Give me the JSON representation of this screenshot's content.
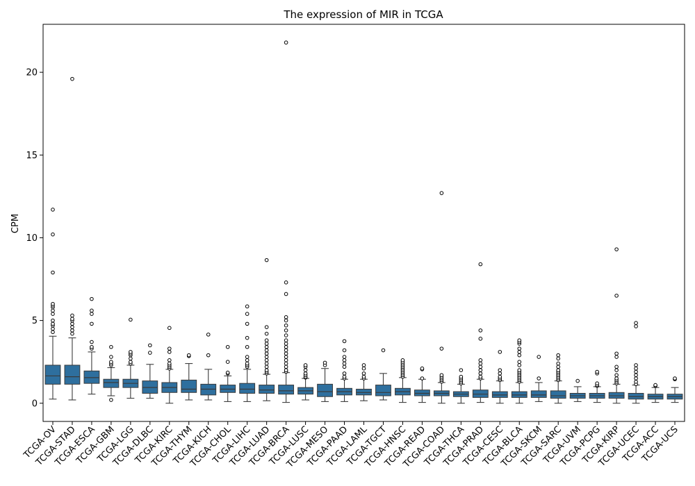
{
  "chart_data": {
    "type": "box",
    "title": "The expression of MIR in TCGA",
    "xlabel": "",
    "ylabel": "CPM",
    "ylim": [
      -1.1,
      22.9
    ],
    "yticks": [
      0,
      5,
      10,
      15,
      20
    ],
    "grid": false,
    "box_color": "#2e6f9e",
    "edge_color": "#3a3a3a",
    "categories": [
      {
        "name": "TCGA-OV",
        "whisker_low": 0.25,
        "q1": 1.15,
        "median": 1.65,
        "q3": 2.3,
        "whisker_high": 4.05,
        "outliers": [
          4.3,
          4.5,
          4.7,
          4.8,
          5.0,
          5.4,
          5.6,
          5.8,
          5.9,
          6.0,
          7.9,
          10.2,
          11.7
        ]
      },
      {
        "name": "TCGA-STAD",
        "whisker_low": 0.2,
        "q1": 1.15,
        "median": 1.6,
        "q3": 2.3,
        "whisker_high": 3.95,
        "outliers": [
          4.2,
          4.4,
          4.6,
          4.8,
          5.0,
          5.1,
          5.3,
          19.6
        ]
      },
      {
        "name": "TCGA-ESCA",
        "whisker_low": 0.55,
        "q1": 1.2,
        "median": 1.55,
        "q3": 1.95,
        "whisker_high": 3.1,
        "outliers": [
          3.3,
          3.4,
          3.7,
          4.8,
          5.4,
          5.6,
          6.3
        ]
      },
      {
        "name": "TCGA-GBM",
        "whisker_low": 0.45,
        "q1": 0.95,
        "median": 1.25,
        "q3": 1.45,
        "whisker_high": 2.15,
        "outliers": [
          0.2,
          2.3,
          2.4,
          2.5,
          2.8,
          3.4
        ]
      },
      {
        "name": "TCGA-LGG",
        "whisker_low": 0.3,
        "q1": 0.95,
        "median": 1.2,
        "q3": 1.45,
        "whisker_high": 2.3,
        "outliers": [
          2.4,
          2.5,
          2.7,
          2.9,
          3.0,
          3.1,
          5.05
        ]
      },
      {
        "name": "TCGA-DLBC",
        "whisker_low": 0.3,
        "q1": 0.6,
        "median": 0.95,
        "q3": 1.35,
        "whisker_high": 2.35,
        "outliers": [
          3.05,
          3.5
        ]
      },
      {
        "name": "TCGA-KIRC",
        "whisker_low": 0.0,
        "q1": 0.65,
        "median": 0.95,
        "q3": 1.25,
        "whisker_high": 2.05,
        "outliers": [
          2.1,
          2.2,
          2.3,
          2.4,
          2.6,
          3.1,
          3.3,
          4.55
        ]
      },
      {
        "name": "TCGA-THYM",
        "whisker_low": 0.2,
        "q1": 0.65,
        "median": 0.85,
        "q3": 1.4,
        "whisker_high": 2.4,
        "outliers": [
          2.85,
          2.9
        ]
      },
      {
        "name": "TCGA-KICH",
        "whisker_low": 0.2,
        "q1": 0.5,
        "median": 0.85,
        "q3": 1.15,
        "whisker_high": 2.05,
        "outliers": [
          2.9,
          4.15
        ]
      },
      {
        "name": "TCGA-CHOL",
        "whisker_low": 0.1,
        "q1": 0.65,
        "median": 0.85,
        "q3": 1.1,
        "whisker_high": 1.65,
        "outliers": [
          1.8,
          1.85,
          2.5,
          3.4
        ]
      },
      {
        "name": "TCGA-LIHC",
        "whisker_low": 0.1,
        "q1": 0.6,
        "median": 0.85,
        "q3": 1.2,
        "whisker_high": 2.05,
        "outliers": [
          2.2,
          2.3,
          2.4,
          2.6,
          2.8,
          3.4,
          3.95,
          4.8,
          5.4,
          5.85
        ]
      },
      {
        "name": "TCGA-LUAD",
        "whisker_low": 0.15,
        "q1": 0.6,
        "median": 0.8,
        "q3": 1.1,
        "whisker_high": 1.75,
        "outliers": [
          1.8,
          1.9,
          2.0,
          2.2,
          2.4,
          2.6,
          2.8,
          3.0,
          3.2,
          3.4,
          3.6,
          3.8,
          4.2,
          4.6,
          8.65
        ]
      },
      {
        "name": "TCGA-BRCA",
        "whisker_low": 0.05,
        "q1": 0.55,
        "median": 0.75,
        "q3": 1.1,
        "whisker_high": 1.85,
        "outliers": [
          1.9,
          2.0,
          2.2,
          2.4,
          2.6,
          2.8,
          3.0,
          3.2,
          3.4,
          3.6,
          3.8,
          4.1,
          4.4,
          4.7,
          5.0,
          5.2,
          6.6,
          7.3,
          21.8
        ]
      },
      {
        "name": "TCGA-LUSC",
        "whisker_low": 0.2,
        "q1": 0.55,
        "median": 0.75,
        "q3": 0.95,
        "whisker_high": 1.5,
        "outliers": [
          1.55,
          1.6,
          1.7,
          1.8,
          2.0,
          2.2,
          2.3
        ]
      },
      {
        "name": "TCGA-MESO",
        "whisker_low": 0.1,
        "q1": 0.4,
        "median": 0.7,
        "q3": 1.15,
        "whisker_high": 2.1,
        "outliers": [
          2.3,
          2.45
        ]
      },
      {
        "name": "TCGA-PAAD",
        "whisker_low": 0.1,
        "q1": 0.5,
        "median": 0.7,
        "q3": 0.9,
        "whisker_high": 1.45,
        "outliers": [
          1.5,
          1.6,
          1.8,
          2.2,
          2.4,
          2.6,
          2.8,
          3.2,
          3.75
        ]
      },
      {
        "name": "TCGA-LAML",
        "whisker_low": 0.15,
        "q1": 0.5,
        "median": 0.65,
        "q3": 0.85,
        "whisker_high": 1.45,
        "outliers": [
          1.5,
          1.6,
          1.8,
          2.1,
          2.3
        ]
      },
      {
        "name": "TCGA-TGCT",
        "whisker_low": 0.2,
        "q1": 0.45,
        "median": 0.65,
        "q3": 1.1,
        "whisker_high": 1.8,
        "outliers": [
          3.2
        ]
      },
      {
        "name": "TCGA-HNSC",
        "whisker_low": 0.05,
        "q1": 0.5,
        "median": 0.7,
        "q3": 0.9,
        "whisker_high": 1.55,
        "outliers": [
          1.6,
          1.7,
          1.8,
          1.9,
          2.0,
          2.1,
          2.2,
          2.3,
          2.4,
          2.5,
          2.6
        ]
      },
      {
        "name": "TCGA-READ",
        "whisker_low": 0.05,
        "q1": 0.45,
        "median": 0.6,
        "q3": 0.8,
        "whisker_high": 1.45,
        "outliers": [
          1.5,
          2.05,
          2.1
        ]
      },
      {
        "name": "TCGA-COAD",
        "whisker_low": 0.0,
        "q1": 0.45,
        "median": 0.6,
        "q3": 0.75,
        "whisker_high": 1.25,
        "outliers": [
          1.3,
          1.4,
          1.5,
          1.6,
          1.7,
          3.3,
          12.7
        ]
      },
      {
        "name": "TCGA-THCA",
        "whisker_low": 0.0,
        "q1": 0.4,
        "median": 0.55,
        "q3": 0.7,
        "whisker_high": 1.15,
        "outliers": [
          1.2,
          1.3,
          1.4,
          1.5,
          1.6,
          2.0
        ]
      },
      {
        "name": "TCGA-PRAD",
        "whisker_low": 0.05,
        "q1": 0.35,
        "median": 0.55,
        "q3": 0.8,
        "whisker_high": 1.45,
        "outliers": [
          1.5,
          1.6,
          1.8,
          2.0,
          2.2,
          2.4,
          2.6,
          3.9,
          4.4,
          8.4
        ]
      },
      {
        "name": "TCGA-CESC",
        "whisker_low": 0.0,
        "q1": 0.35,
        "median": 0.5,
        "q3": 0.7,
        "whisker_high": 1.35,
        "outliers": [
          1.4,
          1.5,
          1.6,
          1.8,
          2.0,
          3.1
        ]
      },
      {
        "name": "TCGA-BLCA",
        "whisker_low": 0.0,
        "q1": 0.35,
        "median": 0.5,
        "q3": 0.7,
        "whisker_high": 1.25,
        "outliers": [
          1.3,
          1.4,
          1.5,
          1.6,
          1.7,
          1.8,
          1.9,
          2.0,
          2.3,
          2.5,
          2.9,
          3.1,
          3.3,
          3.6,
          3.7,
          3.8
        ]
      },
      {
        "name": "TCGA-SKCM",
        "whisker_low": 0.1,
        "q1": 0.35,
        "median": 0.5,
        "q3": 0.75,
        "whisker_high": 1.25,
        "outliers": [
          1.5,
          2.8
        ]
      },
      {
        "name": "TCGA-SARC",
        "whisker_low": 0.0,
        "q1": 0.3,
        "median": 0.45,
        "q3": 0.75,
        "whisker_high": 1.35,
        "outliers": [
          1.4,
          1.5,
          1.6,
          1.7,
          1.8,
          1.9,
          2.0,
          2.2,
          2.4,
          2.7,
          2.9
        ]
      },
      {
        "name": "TCGA-UVM",
        "whisker_low": 0.1,
        "q1": 0.3,
        "median": 0.45,
        "q3": 0.6,
        "whisker_high": 1.0,
        "outliers": [
          1.35
        ]
      },
      {
        "name": "TCGA-PCPG",
        "whisker_low": 0.05,
        "q1": 0.3,
        "median": 0.45,
        "q3": 0.6,
        "whisker_high": 1.0,
        "outliers": [
          1.05,
          1.1,
          1.2,
          1.8,
          1.9
        ]
      },
      {
        "name": "TCGA-KIRP",
        "whisker_low": 0.0,
        "q1": 0.3,
        "median": 0.45,
        "q3": 0.65,
        "whisker_high": 1.15,
        "outliers": [
          1.2,
          1.3,
          1.4,
          1.5,
          1.7,
          2.0,
          2.2,
          2.8,
          3.0,
          6.5,
          9.3
        ]
      },
      {
        "name": "TCGA-UCEC",
        "whisker_low": 0.0,
        "q1": 0.25,
        "median": 0.4,
        "q3": 0.6,
        "whisker_high": 1.1,
        "outliers": [
          1.15,
          1.3,
          1.5,
          1.7,
          1.9,
          2.1,
          2.3,
          4.65,
          4.85
        ]
      },
      {
        "name": "TCGA-ACC",
        "whisker_low": 0.05,
        "q1": 0.25,
        "median": 0.4,
        "q3": 0.55,
        "whisker_high": 0.95,
        "outliers": [
          1.05,
          1.1
        ]
      },
      {
        "name": "TCGA-UCS",
        "whisker_low": 0.05,
        "q1": 0.25,
        "median": 0.4,
        "q3": 0.55,
        "whisker_high": 0.95,
        "outliers": [
          1.45,
          1.5
        ]
      }
    ]
  }
}
